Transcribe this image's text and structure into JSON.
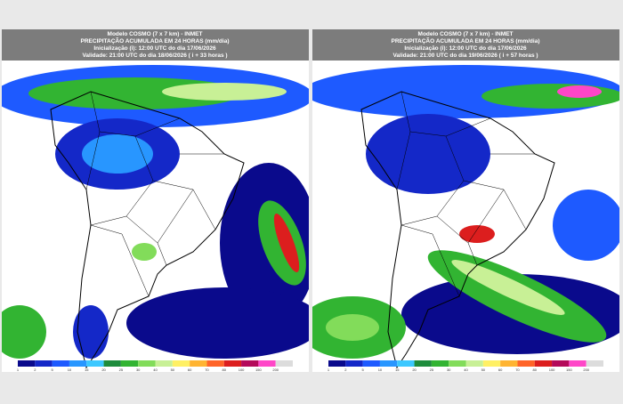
{
  "panels": [
    {
      "header": [
        "Modelo COSMO (7 x 7 km) - INMET",
        "PRECIPITAÇÃO ACUMULADA EM 24 HORAS (mm/dia)",
        "Inicialização (i): 12:00 UTC do dia 17/06/2026",
        "Validade: 21:00 UTC do dia 18/06/2026 ( i + 33 horas )"
      ],
      "scale_labels": [
        "1",
        "2",
        "5",
        "10",
        "15",
        "20",
        "25",
        "30",
        "40",
        "50",
        "60",
        "70",
        "80",
        "100",
        "150",
        "200"
      ]
    },
    {
      "header": [
        "Modelo COSMO (7 x 7 km) - INMET",
        "PRECIPITAÇÃO ACUMULADA EM 24 HORAS (mm/dia)",
        "Inicialização (i): 12:00 UTC do dia 17/06/2026",
        "Validade: 21:00 UTC do dia 19/06/2026 ( i + 57 horas )"
      ],
      "scale_labels": [
        "1",
        "2",
        "5",
        "10",
        "15",
        "20",
        "25",
        "30",
        "40",
        "50",
        "60",
        "70",
        "80",
        "100",
        "150",
        "200"
      ]
    }
  ],
  "scale_colors": [
    "#0a0a8c",
    "#1428c8",
    "#1e5aff",
    "#2896ff",
    "#3cc8ff",
    "#1e8c3c",
    "#32b432",
    "#82dc5a",
    "#c8f096",
    "#fff064",
    "#ffb432",
    "#ff6428",
    "#dc1e1e",
    "#b40a5a",
    "#ff46c8",
    "#dcdcdc"
  ]
}
